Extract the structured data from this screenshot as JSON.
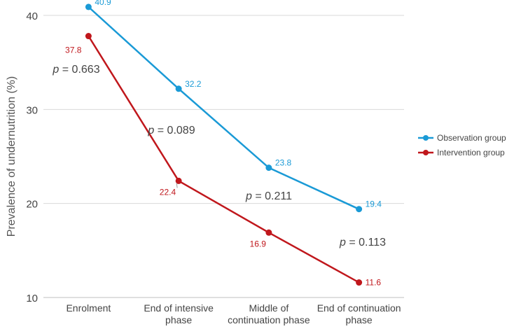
{
  "chart_data": {
    "type": "line",
    "title": "",
    "xlabel": "",
    "ylabel": "Prevalence of undernutrition (%)",
    "ylim": [
      10,
      40
    ],
    "yticks": [
      10,
      20,
      30,
      40
    ],
    "grid": true,
    "legend_position": "right",
    "categories": [
      [
        "Enrolment"
      ],
      [
        "End of intensive",
        "phase"
      ],
      [
        "Middle of",
        "continuation phase"
      ],
      [
        "End of continuation",
        "phase"
      ]
    ],
    "series": [
      {
        "name": "Observation group",
        "color": "#1a9ad6",
        "values": [
          40.9,
          32.2,
          23.8,
          19.4
        ],
        "labels": [
          "40.9",
          "32.2",
          "23.8",
          "19.4"
        ]
      },
      {
        "name": "Intervention group",
        "color": "#c0171c",
        "values": [
          37.8,
          22.4,
          16.9,
          11.6
        ],
        "labels": [
          "37.8",
          "22.4",
          "16.9",
          "11.6"
        ]
      }
    ],
    "annotations": [
      {
        "prefix": "p",
        "text": " = 0.663"
      },
      {
        "prefix": "p",
        "text": " = 0.089"
      },
      {
        "prefix": "p",
        "text": " = 0.211"
      },
      {
        "prefix": "p",
        "text": " = 0.113"
      }
    ]
  }
}
